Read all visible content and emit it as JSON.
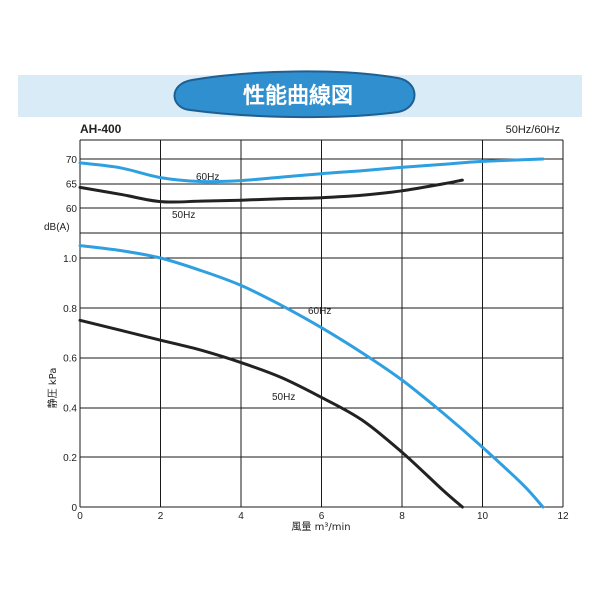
{
  "header": {
    "banner_title": "性能曲線図",
    "model": "AH-400",
    "frequency_label": "50Hz/60Hz"
  },
  "colors": {
    "header_band": "#d8ebf6",
    "banner_fill": "#2f8fcf",
    "banner_edge": "#1f5f92",
    "series_60hz": "#2e9fe0",
    "series_50hz": "#222222",
    "grid": "#1a1a1a"
  },
  "chart_data": [
    {
      "type": "line",
      "title": "",
      "xlabel": "",
      "ylabel": "dB(A)",
      "yticks": [
        60,
        65,
        70
      ],
      "xlim": [
        0,
        12
      ],
      "ylim": [
        58,
        71
      ],
      "series": [
        {
          "name": "60Hz",
          "x": [
            0,
            1,
            2,
            3,
            4,
            5,
            6,
            7,
            8,
            9,
            10,
            11.5
          ],
          "y": [
            69.2,
            68.2,
            66.2,
            65.4,
            65.6,
            66.3,
            67.0,
            67.6,
            68.3,
            68.9,
            69.5,
            70.0
          ]
        },
        {
          "name": "50Hz",
          "x": [
            0,
            1,
            2,
            3,
            4,
            5,
            6,
            7,
            8,
            9,
            9.5
          ],
          "y": [
            64.2,
            62.8,
            61.3,
            61.4,
            61.6,
            61.9,
            62.1,
            62.6,
            63.5,
            64.9,
            65.7
          ]
        }
      ]
    },
    {
      "type": "line",
      "title": "",
      "xlabel": "風量 m³/min",
      "ylabel": "静圧 kPa",
      "xlim": [
        0,
        12
      ],
      "ylim": [
        0,
        1.1
      ],
      "xticks": [
        0,
        2,
        4,
        6,
        8,
        10,
        12
      ],
      "yticks": [
        0,
        0.2,
        0.4,
        0.6,
        0.8,
        1.0
      ],
      "ytick_labels": [
        "0",
        "0.2",
        "0.4",
        "0.6",
        "0.8",
        "1.0"
      ],
      "series": [
        {
          "name": "60Hz",
          "x": [
            0,
            1,
            2,
            3,
            4,
            5,
            6,
            7,
            8,
            9,
            10,
            11,
            11.5
          ],
          "y": [
            1.05,
            1.03,
            1.0,
            0.95,
            0.89,
            0.81,
            0.72,
            0.62,
            0.51,
            0.38,
            0.24,
            0.09,
            0.0
          ]
        },
        {
          "name": "50Hz",
          "x": [
            0,
            1,
            2,
            3,
            4,
            5,
            6,
            7,
            8,
            9,
            9.5
          ],
          "y": [
            0.75,
            0.71,
            0.67,
            0.63,
            0.58,
            0.52,
            0.44,
            0.35,
            0.22,
            0.07,
            0.0
          ]
        }
      ]
    }
  ]
}
